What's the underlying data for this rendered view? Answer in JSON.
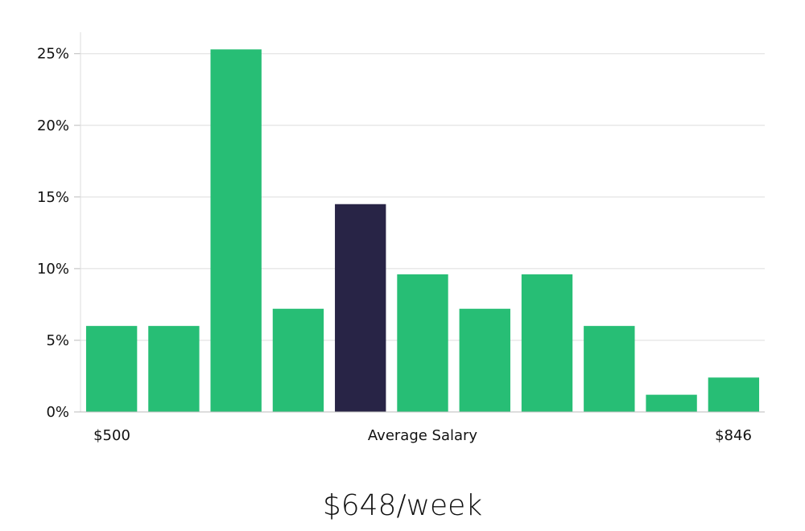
{
  "chart_data": {
    "type": "bar",
    "values": [
      6.0,
      6.0,
      25.3,
      7.2,
      14.5,
      9.6,
      7.2,
      9.6,
      6.0,
      1.2,
      2.4
    ],
    "highlight_index": 4,
    "colors": {
      "bar": "#27be75",
      "highlight": "#282446",
      "grid": "#dddddd",
      "axis": "#bbbbbb"
    },
    "ylim": [
      0,
      26.5
    ],
    "yticks": [
      0,
      5,
      10,
      15,
      20,
      25
    ],
    "ytick_labels": [
      "0%",
      "5%",
      "10%",
      "15%",
      "20%",
      "25%"
    ],
    "x_min_label": "$500",
    "x_max_label": "$846",
    "xlabel": "Average Salary",
    "grid": true
  },
  "caption": "$648/week"
}
